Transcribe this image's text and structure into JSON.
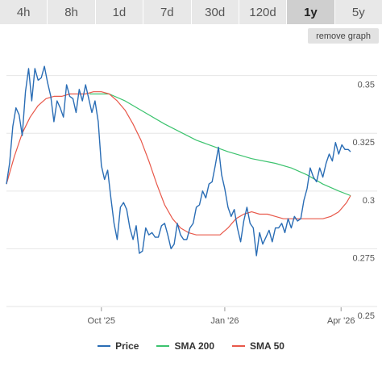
{
  "tabs": [
    {
      "label": "4h"
    },
    {
      "label": "8h"
    },
    {
      "label": "1d"
    },
    {
      "label": "7d"
    },
    {
      "label": "30d"
    },
    {
      "label": "120d"
    },
    {
      "label": "1y",
      "active": true
    },
    {
      "label": "5y"
    }
  ],
  "remove_button": "remove graph",
  "colors": {
    "price": "#2a6db5",
    "sma200": "#3cc36e",
    "sma50": "#e8584a",
    "grid": "#e6e6e6"
  },
  "chart_data": {
    "type": "line",
    "ylim": [
      0.25,
      0.36
    ],
    "yticks": [
      {
        "value": 0.35,
        "label": "0.35"
      },
      {
        "value": 0.325,
        "label": "0.325"
      },
      {
        "value": 0.3,
        "label": "0.3"
      },
      {
        "value": 0.275,
        "label": "0.275"
      },
      {
        "value": 0.25,
        "label": "0.25"
      }
    ],
    "xticks": [
      {
        "value": 120,
        "label": "Oct '25"
      },
      {
        "value": 276,
        "label": "Jan '26"
      },
      {
        "value": 423,
        "label": "Apr '26"
      }
    ],
    "xlim": [
      0,
      435
    ],
    "legend": "bottom",
    "series": [
      {
        "name": "Price",
        "color": "#2a6db5",
        "x": [
          0,
          4,
          8,
          12,
          16,
          20,
          24,
          28,
          32,
          36,
          40,
          44,
          48,
          52,
          56,
          60,
          64,
          68,
          72,
          76,
          80,
          84,
          88,
          92,
          96,
          100,
          104,
          108,
          112,
          116,
          120,
          124,
          128,
          132,
          136,
          140,
          144,
          148,
          152,
          156,
          160,
          164,
          168,
          172,
          176,
          180,
          184,
          188,
          192,
          196,
          200,
          204,
          208,
          212,
          216,
          220,
          224,
          228,
          232,
          236,
          240,
          244,
          248,
          252,
          256,
          260,
          264,
          268,
          272,
          276,
          280,
          284,
          288,
          292,
          296,
          300,
          304,
          308,
          312,
          316,
          320,
          324,
          328,
          332,
          336,
          340,
          344,
          348,
          352,
          356,
          360,
          364,
          368,
          372,
          376,
          380,
          384,
          388,
          392,
          396,
          400,
          404,
          408,
          412,
          416,
          420,
          424,
          428,
          432,
          435
        ],
        "y": [
          0.303,
          0.312,
          0.328,
          0.336,
          0.333,
          0.324,
          0.343,
          0.353,
          0.339,
          0.353,
          0.348,
          0.349,
          0.354,
          0.347,
          0.341,
          0.33,
          0.339,
          0.336,
          0.332,
          0.346,
          0.341,
          0.34,
          0.334,
          0.344,
          0.339,
          0.346,
          0.34,
          0.334,
          0.339,
          0.33,
          0.311,
          0.305,
          0.309,
          0.297,
          0.286,
          0.279,
          0.293,
          0.295,
          0.292,
          0.284,
          0.279,
          0.285,
          0.273,
          0.274,
          0.284,
          0.281,
          0.282,
          0.28,
          0.28,
          0.285,
          0.286,
          0.281,
          0.275,
          0.277,
          0.286,
          0.281,
          0.279,
          0.279,
          0.284,
          0.286,
          0.293,
          0.294,
          0.3,
          0.297,
          0.303,
          0.304,
          0.311,
          0.319,
          0.307,
          0.301,
          0.293,
          0.289,
          0.292,
          0.284,
          0.278,
          0.287,
          0.293,
          0.286,
          0.284,
          0.272,
          0.282,
          0.277,
          0.28,
          0.283,
          0.278,
          0.284,
          0.284,
          0.286,
          0.282,
          0.288,
          0.284,
          0.289,
          0.287,
          0.288,
          0.296,
          0.301,
          0.31,
          0.306,
          0.304,
          0.31,
          0.306,
          0.312,
          0.316,
          0.313,
          0.321,
          0.316,
          0.32,
          0.318,
          0.318,
          0.317
        ]
      },
      {
        "name": "SMA 200",
        "color": "#3cc36e",
        "x": [
          105,
          130,
          150,
          170,
          200,
          240,
          280,
          310,
          340,
          360,
          380,
          400,
          420,
          435
        ],
        "y": [
          0.342,
          0.342,
          0.339,
          0.335,
          0.329,
          0.322,
          0.317,
          0.314,
          0.312,
          0.31,
          0.307,
          0.303,
          0.3,
          0.298
        ]
      },
      {
        "name": "SMA 50",
        "color": "#e8584a",
        "x": [
          0,
          10,
          20,
          30,
          40,
          50,
          60,
          70,
          80,
          90,
          100,
          110,
          120,
          130,
          140,
          150,
          160,
          170,
          180,
          190,
          200,
          210,
          220,
          230,
          240,
          250,
          260,
          270,
          280,
          290,
          300,
          310,
          320,
          330,
          340,
          350,
          360,
          370,
          380,
          390,
          400,
          410,
          420,
          430,
          435
        ],
        "y": [
          0.303,
          0.315,
          0.325,
          0.332,
          0.337,
          0.34,
          0.341,
          0.341,
          0.342,
          0.342,
          0.342,
          0.343,
          0.343,
          0.342,
          0.339,
          0.335,
          0.329,
          0.322,
          0.313,
          0.303,
          0.294,
          0.288,
          0.284,
          0.282,
          0.281,
          0.281,
          0.281,
          0.281,
          0.284,
          0.288,
          0.29,
          0.291,
          0.29,
          0.29,
          0.289,
          0.288,
          0.288,
          0.288,
          0.288,
          0.288,
          0.288,
          0.289,
          0.291,
          0.295,
          0.298
        ]
      }
    ]
  }
}
